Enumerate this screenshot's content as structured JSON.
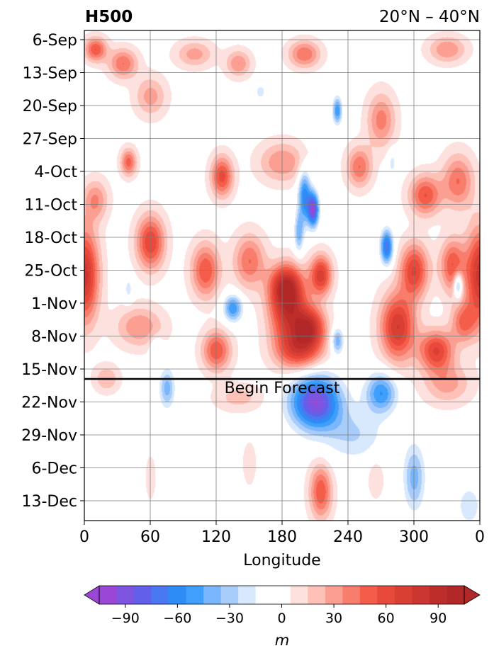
{
  "chart_data": {
    "type": "heatmap",
    "title_left": "H500",
    "title_right": "20°N – 40°N",
    "xlabel": "Longitude",
    "x_ticks": [
      "0",
      "60",
      "120",
      "180",
      "240",
      "300",
      "0"
    ],
    "xlim": [
      0,
      360
    ],
    "y_ticks": [
      "6-Sep",
      "13-Sep",
      "20-Sep",
      "27-Sep",
      "4-Oct",
      "11-Oct",
      "18-Oct",
      "25-Oct",
      "1-Nov",
      "8-Nov",
      "15-Nov",
      "22-Nov",
      "29-Nov",
      "6-Dec",
      "13-Dec"
    ],
    "annotation": "Begin Forecast",
    "colorbar": {
      "label": "m",
      "ticks": [
        "−90",
        "−60",
        "−30",
        "0",
        "30",
        "60",
        "90"
      ],
      "levels": [
        -105,
        -95,
        -85,
        -75,
        -65,
        -55,
        -45,
        -35,
        -25,
        -15,
        -5,
        5,
        15,
        25,
        35,
        45,
        55,
        65,
        75,
        85,
        95,
        105
      ],
      "colors": [
        "#9a47d6",
        "#7d55e0",
        "#6260ea",
        "#4a78f0",
        "#2e8cf7",
        "#3f9ffa",
        "#79b6fb",
        "#a8cdfb",
        "#d9e9fd",
        "#ffffff",
        "#ffffff",
        "#fde1de",
        "#fdc1b8",
        "#fb9f92",
        "#f87d6c",
        "#f45d49",
        "#e8493a",
        "#da3f34",
        "#cc3630",
        "#bd2e2b",
        "#b22828"
      ],
      "extend": "both",
      "under_color": "#9a47d6",
      "over_color": "#b22828"
    },
    "field_blobs": [
      {
        "lon": 10,
        "day": 2,
        "amp": 55,
        "slon": 7,
        "sday": 1.8
      },
      {
        "lon": 35,
        "day": 5,
        "amp": 45,
        "slon": 9,
        "sday": 2.2
      },
      {
        "lon": 100,
        "day": 3,
        "amp": 30,
        "slon": 12,
        "sday": 2
      },
      {
        "lon": 140,
        "day": 5,
        "amp": 35,
        "slon": 8,
        "sday": 2
      },
      {
        "lon": 200,
        "day": 3,
        "amp": 45,
        "slon": 10,
        "sday": 2
      },
      {
        "lon": 330,
        "day": 2,
        "amp": 35,
        "slon": 12,
        "sday": 2
      },
      {
        "lon": 230,
        "day": 15,
        "amp": -55,
        "slon": 3,
        "sday": 2
      },
      {
        "lon": 160,
        "day": 11,
        "amp": -25,
        "slon": 3,
        "sday": 1
      },
      {
        "lon": 270,
        "day": 17,
        "amp": 40,
        "slon": 9,
        "sday": 4
      },
      {
        "lon": 60,
        "day": 12,
        "amp": 30,
        "slon": 10,
        "sday": 3
      },
      {
        "lon": 40,
        "day": 26,
        "amp": 50,
        "slon": 5,
        "sday": 2
      },
      {
        "lon": 125,
        "day": 29,
        "amp": 60,
        "slon": 7,
        "sday": 3
      },
      {
        "lon": 180,
        "day": 26,
        "amp": 35,
        "slon": 15,
        "sday": 3
      },
      {
        "lon": 250,
        "day": 27,
        "amp": 45,
        "slon": 8,
        "sday": 3
      },
      {
        "lon": 310,
        "day": 33,
        "amp": 55,
        "slon": 10,
        "sday": 3
      },
      {
        "lon": 340,
        "day": 30,
        "amp": 45,
        "slon": 10,
        "sday": 4
      },
      {
        "lon": 280,
        "day": 26,
        "amp": -20,
        "slon": 3,
        "sday": 2
      },
      {
        "lon": 10,
        "day": 34,
        "amp": 35,
        "slon": 8,
        "sday": 3
      },
      {
        "lon": 200,
        "day": 33,
        "amp": -60,
        "slon": 4,
        "sday": 4
      },
      {
        "lon": 208,
        "day": 36,
        "amp": -95,
        "slon": 3.5,
        "sday": 2.5
      },
      {
        "lon": 195,
        "day": 41,
        "amp": -40,
        "slon": 3,
        "sday": 3
      },
      {
        "lon": 60,
        "day": 43,
        "amp": 65,
        "slon": 9,
        "sday": 4
      },
      {
        "lon": 275,
        "day": 44,
        "amp": -75,
        "slon": 4,
        "sday": 2.5
      },
      {
        "lon": 0,
        "day": 50,
        "amp": 80,
        "slon": 9,
        "sday": 7
      },
      {
        "lon": 360,
        "day": 50,
        "amp": 80,
        "slon": 9,
        "sday": 7
      },
      {
        "lon": 110,
        "day": 49,
        "amp": 55,
        "slon": 9,
        "sday": 4
      },
      {
        "lon": 150,
        "day": 47,
        "amp": 45,
        "slon": 10,
        "sday": 4
      },
      {
        "lon": 183,
        "day": 52,
        "amp": 60,
        "slon": 10,
        "sday": 3
      },
      {
        "lon": 215,
        "day": 50,
        "amp": 70,
        "slon": 7,
        "sday": 3
      },
      {
        "lon": 300,
        "day": 49,
        "amp": 65,
        "slon": 9,
        "sday": 4
      },
      {
        "lon": 335,
        "day": 48,
        "amp": 55,
        "slon": 8,
        "sday": 4
      },
      {
        "lon": 340,
        "day": 52,
        "amp": -55,
        "slon": 3,
        "sday": 2
      },
      {
        "lon": 40,
        "day": 53,
        "amp": -20,
        "slon": 3,
        "sday": 2
      },
      {
        "lon": 135,
        "day": 57,
        "amp": -55,
        "slon": 6,
        "sday": 2
      },
      {
        "lon": 185,
        "day": 57,
        "amp": 80,
        "slon": 12,
        "sday": 5
      },
      {
        "lon": 205,
        "day": 61,
        "amp": 75,
        "slon": 10,
        "sday": 3
      },
      {
        "lon": 195,
        "day": 66,
        "amp": 60,
        "slon": 15,
        "sday": 3
      },
      {
        "lon": 230,
        "day": 64,
        "amp": -45,
        "slon": 4,
        "sday": 2
      },
      {
        "lon": 285,
        "day": 61,
        "amp": 75,
        "slon": 11,
        "sday": 5
      },
      {
        "lon": 320,
        "day": 66,
        "amp": 65,
        "slon": 11,
        "sday": 3
      },
      {
        "lon": 345,
        "day": 60,
        "amp": 45,
        "slon": 8,
        "sday": 3
      },
      {
        "lon": 50,
        "day": 61,
        "amp": 35,
        "slon": 15,
        "sday": 3
      },
      {
        "lon": 120,
        "day": 66,
        "amp": 55,
        "slon": 9,
        "sday": 3
      },
      {
        "lon": 65,
        "day": 65,
        "amp": -20,
        "slon": 4,
        "sday": 1.5
      },
      {
        "lon": 20,
        "day": 72,
        "amp": 25,
        "slon": 8,
        "sday": 2
      },
      {
        "lon": 75,
        "day": 74,
        "amp": -40,
        "slon": 5,
        "sday": 3
      },
      {
        "lon": 330,
        "day": 73,
        "amp": 30,
        "slon": 15,
        "sday": 3
      },
      {
        "lon": 210,
        "day": 77,
        "amp": -95,
        "slon": 16,
        "sday": 4
      },
      {
        "lon": 270,
        "day": 75,
        "amp": -55,
        "slon": 10,
        "sday": 3
      },
      {
        "lon": 245,
        "day": 84,
        "amp": -25,
        "slon": 20,
        "sday": 4
      },
      {
        "lon": 140,
        "day": 76,
        "amp": 20,
        "slon": 15,
        "sday": 2
      },
      {
        "lon": 300,
        "day": 93,
        "amp": -40,
        "slon": 7,
        "sday": 5
      },
      {
        "lon": 350,
        "day": 99,
        "amp": -20,
        "slon": 10,
        "sday": 4
      },
      {
        "lon": 215,
        "day": 96,
        "amp": 55,
        "slon": 7,
        "sday": 4
      },
      {
        "lon": 100,
        "day": 88,
        "amp": -15,
        "slon": 10,
        "sday": 2
      },
      {
        "lon": 150,
        "day": 90,
        "amp": 15,
        "slon": 4,
        "sday": 3
      },
      {
        "lon": 60,
        "day": 93,
        "amp": 15,
        "slon": 3,
        "sday": 3
      },
      {
        "lon": 265,
        "day": 93,
        "amp": 15,
        "slon": 5,
        "sday": 3
      }
    ]
  }
}
